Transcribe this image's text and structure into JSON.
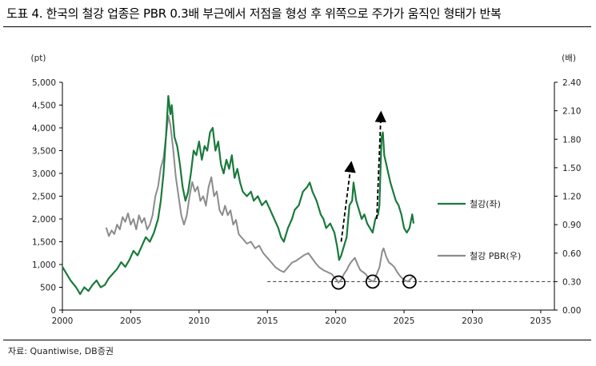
{
  "header": {
    "title": "도표 4. 한국의 철강 업종은 PBR 0.3배 부근에서 저점을 형성 후 위쪽으로 주가가 움직인 형태가 반복"
  },
  "footer": {
    "source": "자료: Quantiwise, DB증권"
  },
  "colors": {
    "steel_index": "#1a7a3c",
    "steel_pbr": "#8c8c8c"
  },
  "chart_data": {
    "type": "line",
    "x_ticks": [
      "2000",
      "2005",
      "2010",
      "2015",
      "2020",
      "2025",
      "2030",
      "2035"
    ],
    "xlim": [
      2000,
      2036
    ],
    "y_left": {
      "unit": "(pt)",
      "ticks": [
        "0",
        "500",
        "1,000",
        "1,500",
        "2,000",
        "2,500",
        "3,000",
        "3,500",
        "4,000",
        "4,500",
        "5,000"
      ],
      "ylim": [
        0,
        5000
      ]
    },
    "y_right": {
      "unit": "(배)",
      "ticks": [
        "0.00",
        "0.30",
        "0.60",
        "0.90",
        "1.20",
        "1.50",
        "1.80",
        "2.10",
        "2.40"
      ],
      "ylim": [
        0,
        2.4
      ]
    },
    "reference_line": {
      "axis": "right",
      "value": 0.3,
      "x_start": 2015.0,
      "x_end": 2036.0
    },
    "circled_lows": [
      {
        "x": 2020.2,
        "y": 0.29
      },
      {
        "x": 2022.7,
        "y": 0.3
      },
      {
        "x": 2025.4,
        "y": 0.3
      }
    ],
    "arrows": [
      {
        "from": [
          2020.4,
          1500
        ],
        "to": [
          2021.1,
          3150
        ]
      },
      {
        "from": [
          2023.0,
          2000
        ],
        "to": [
          2023.3,
          4250
        ]
      }
    ],
    "series": [
      {
        "name": "철강(좌)",
        "axis": "left",
        "points": [
          [
            2000.0,
            950
          ],
          [
            2000.3,
            800
          ],
          [
            2000.6,
            650
          ],
          [
            2001.0,
            500
          ],
          [
            2001.3,
            350
          ],
          [
            2001.6,
            500
          ],
          [
            2001.9,
            420
          ],
          [
            2002.2,
            550
          ],
          [
            2002.5,
            650
          ],
          [
            2002.8,
            500
          ],
          [
            2003.1,
            550
          ],
          [
            2003.4,
            700
          ],
          [
            2003.7,
            800
          ],
          [
            2004.0,
            900
          ],
          [
            2004.3,
            1050
          ],
          [
            2004.6,
            950
          ],
          [
            2004.9,
            1100
          ],
          [
            2005.2,
            1300
          ],
          [
            2005.5,
            1200
          ],
          [
            2005.8,
            1400
          ],
          [
            2006.1,
            1600
          ],
          [
            2006.4,
            1500
          ],
          [
            2006.7,
            1700
          ],
          [
            2007.0,
            2000
          ],
          [
            2007.2,
            2400
          ],
          [
            2007.4,
            3000
          ],
          [
            2007.6,
            3900
          ],
          [
            2007.75,
            4700
          ],
          [
            2007.9,
            4300
          ],
          [
            2008.0,
            4500
          ],
          [
            2008.2,
            3800
          ],
          [
            2008.4,
            3600
          ],
          [
            2008.6,
            3200
          ],
          [
            2008.8,
            2700
          ],
          [
            2009.0,
            2400
          ],
          [
            2009.2,
            2600
          ],
          [
            2009.4,
            3000
          ],
          [
            2009.6,
            3500
          ],
          [
            2009.8,
            3400
          ],
          [
            2010.0,
            3700
          ],
          [
            2010.2,
            3300
          ],
          [
            2010.4,
            3600
          ],
          [
            2010.6,
            3500
          ],
          [
            2010.8,
            3900
          ],
          [
            2011.0,
            4000
          ],
          [
            2011.2,
            3500
          ],
          [
            2011.4,
            3700
          ],
          [
            2011.6,
            3200
          ],
          [
            2011.8,
            3000
          ],
          [
            2012.0,
            3300
          ],
          [
            2012.2,
            3100
          ],
          [
            2012.4,
            3400
          ],
          [
            2012.6,
            2900
          ],
          [
            2012.8,
            3100
          ],
          [
            2013.0,
            2800
          ],
          [
            2013.2,
            2600
          ],
          [
            2013.5,
            2500
          ],
          [
            2013.8,
            2600
          ],
          [
            2014.0,
            2400
          ],
          [
            2014.3,
            2500
          ],
          [
            2014.6,
            2300
          ],
          [
            2014.9,
            2400
          ],
          [
            2015.2,
            2200
          ],
          [
            2015.5,
            2000
          ],
          [
            2015.8,
            1800
          ],
          [
            2016.0,
            1600
          ],
          [
            2016.2,
            1500
          ],
          [
            2016.5,
            1800
          ],
          [
            2016.8,
            2000
          ],
          [
            2017.0,
            2200
          ],
          [
            2017.3,
            2300
          ],
          [
            2017.6,
            2600
          ],
          [
            2017.9,
            2700
          ],
          [
            2018.1,
            2800
          ],
          [
            2018.3,
            2600
          ],
          [
            2018.6,
            2400
          ],
          [
            2018.9,
            2100
          ],
          [
            2019.1,
            2000
          ],
          [
            2019.3,
            1800
          ],
          [
            2019.6,
            1900
          ],
          [
            2019.9,
            1700
          ],
          [
            2020.1,
            1400
          ],
          [
            2020.25,
            1100
          ],
          [
            2020.4,
            1200
          ],
          [
            2020.6,
            1400
          ],
          [
            2020.8,
            1600
          ],
          [
            2021.0,
            2300
          ],
          [
            2021.2,
            2400
          ],
          [
            2021.3,
            2800
          ],
          [
            2021.5,
            2400
          ],
          [
            2021.7,
            2200
          ],
          [
            2021.9,
            2000
          ],
          [
            2022.1,
            2100
          ],
          [
            2022.3,
            1900
          ],
          [
            2022.5,
            1800
          ],
          [
            2022.7,
            1700
          ],
          [
            2022.9,
            2000
          ],
          [
            2023.1,
            2100
          ],
          [
            2023.2,
            2300
          ],
          [
            2023.35,
            3800
          ],
          [
            2023.45,
            3900
          ],
          [
            2023.55,
            3400
          ],
          [
            2023.7,
            3200
          ],
          [
            2023.85,
            3000
          ],
          [
            2024.0,
            2800
          ],
          [
            2024.2,
            2600
          ],
          [
            2024.4,
            2400
          ],
          [
            2024.6,
            2300
          ],
          [
            2024.8,
            2100
          ],
          [
            2025.0,
            1800
          ],
          [
            2025.2,
            1700
          ],
          [
            2025.4,
            1800
          ],
          [
            2025.6,
            2100
          ],
          [
            2025.7,
            1900
          ]
        ]
      },
      {
        "name": "철강 PBR(우)",
        "axis": "right",
        "points": [
          [
            2003.2,
            0.87
          ],
          [
            2003.4,
            0.78
          ],
          [
            2003.6,
            0.84
          ],
          [
            2003.8,
            0.8
          ],
          [
            2004.0,
            0.9
          ],
          [
            2004.2,
            0.85
          ],
          [
            2004.4,
            0.98
          ],
          [
            2004.6,
            0.93
          ],
          [
            2004.8,
            1.02
          ],
          [
            2005.0,
            0.9
          ],
          [
            2005.2,
            0.96
          ],
          [
            2005.4,
            0.85
          ],
          [
            2005.6,
            1.0
          ],
          [
            2005.8,
            0.92
          ],
          [
            2006.0,
            0.97
          ],
          [
            2006.2,
            0.85
          ],
          [
            2006.4,
            0.9
          ],
          [
            2006.6,
            1.0
          ],
          [
            2006.8,
            1.2
          ],
          [
            2007.0,
            1.3
          ],
          [
            2007.2,
            1.5
          ],
          [
            2007.4,
            1.6
          ],
          [
            2007.6,
            1.85
          ],
          [
            2007.75,
            2.05
          ],
          [
            2007.9,
            1.95
          ],
          [
            2008.1,
            1.7
          ],
          [
            2008.3,
            1.4
          ],
          [
            2008.5,
            1.2
          ],
          [
            2008.7,
            1.0
          ],
          [
            2008.9,
            0.9
          ],
          [
            2009.1,
            1.0
          ],
          [
            2009.3,
            1.2
          ],
          [
            2009.5,
            1.35
          ],
          [
            2009.7,
            1.25
          ],
          [
            2009.9,
            1.3
          ],
          [
            2010.1,
            1.15
          ],
          [
            2010.3,
            1.2
          ],
          [
            2010.5,
            1.1
          ],
          [
            2010.7,
            1.3
          ],
          [
            2010.9,
            1.4
          ],
          [
            2011.1,
            1.2
          ],
          [
            2011.3,
            1.25
          ],
          [
            2011.5,
            1.05
          ],
          [
            2011.7,
            1.0
          ],
          [
            2011.9,
            1.1
          ],
          [
            2012.1,
            1.0
          ],
          [
            2012.3,
            1.05
          ],
          [
            2012.5,
            0.9
          ],
          [
            2012.7,
            0.95
          ],
          [
            2012.9,
            0.8
          ],
          [
            2013.2,
            0.75
          ],
          [
            2013.5,
            0.7
          ],
          [
            2013.8,
            0.72
          ],
          [
            2014.1,
            0.65
          ],
          [
            2014.4,
            0.68
          ],
          [
            2014.7,
            0.6
          ],
          [
            2015.0,
            0.55
          ],
          [
            2015.3,
            0.5
          ],
          [
            2015.6,
            0.45
          ],
          [
            2015.9,
            0.42
          ],
          [
            2016.2,
            0.4
          ],
          [
            2016.5,
            0.45
          ],
          [
            2016.8,
            0.5
          ],
          [
            2017.1,
            0.52
          ],
          [
            2017.4,
            0.55
          ],
          [
            2017.7,
            0.58
          ],
          [
            2018.0,
            0.6
          ],
          [
            2018.2,
            0.56
          ],
          [
            2018.5,
            0.5
          ],
          [
            2018.8,
            0.45
          ],
          [
            2019.1,
            0.42
          ],
          [
            2019.4,
            0.4
          ],
          [
            2019.7,
            0.38
          ],
          [
            2020.0,
            0.33
          ],
          [
            2020.2,
            0.29
          ],
          [
            2020.4,
            0.32
          ],
          [
            2020.6,
            0.38
          ],
          [
            2020.8,
            0.42
          ],
          [
            2021.0,
            0.48
          ],
          [
            2021.2,
            0.52
          ],
          [
            2021.4,
            0.55
          ],
          [
            2021.6,
            0.48
          ],
          [
            2021.8,
            0.42
          ],
          [
            2022.0,
            0.4
          ],
          [
            2022.2,
            0.38
          ],
          [
            2022.4,
            0.33
          ],
          [
            2022.6,
            0.31
          ],
          [
            2022.8,
            0.3
          ],
          [
            2023.0,
            0.38
          ],
          [
            2023.2,
            0.45
          ],
          [
            2023.4,
            0.62
          ],
          [
            2023.5,
            0.65
          ],
          [
            2023.7,
            0.56
          ],
          [
            2023.9,
            0.5
          ],
          [
            2024.1,
            0.48
          ],
          [
            2024.3,
            0.45
          ],
          [
            2024.5,
            0.4
          ],
          [
            2024.7,
            0.36
          ],
          [
            2024.9,
            0.33
          ],
          [
            2025.1,
            0.31
          ],
          [
            2025.3,
            0.3
          ],
          [
            2025.5,
            0.33
          ],
          [
            2025.7,
            0.36
          ]
        ]
      }
    ]
  }
}
